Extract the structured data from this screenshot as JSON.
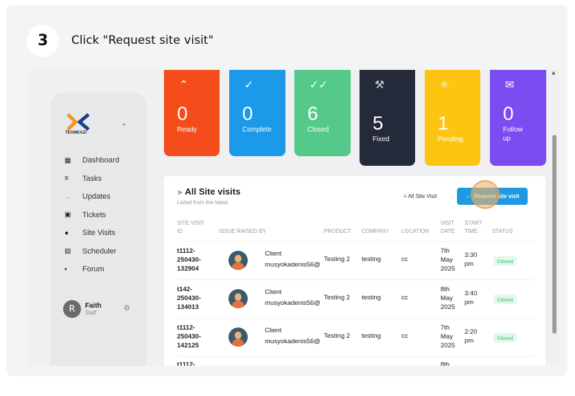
{
  "step": {
    "number": "3",
    "text": "Click \"Request site visit\""
  },
  "logo": {
    "text": "TEAMKAZI"
  },
  "sidebar": {
    "items": [
      {
        "label": "Dashboard",
        "icon": "dashboard-icon"
      },
      {
        "label": "Tasks",
        "icon": "tasks-icon"
      },
      {
        "label": "Updates",
        "icon": "updates-icon"
      },
      {
        "label": "Tickets",
        "icon": "tickets-icon"
      },
      {
        "label": "Site Visits",
        "icon": "location-icon"
      },
      {
        "label": "Scheduler",
        "icon": "calendar-icon"
      },
      {
        "label": "Forum",
        "icon": "forum-icon"
      }
    ]
  },
  "user": {
    "name": "Faith",
    "role": "Staff",
    "initial": "R"
  },
  "cards": [
    {
      "value": "0",
      "label": "Ready",
      "color": "#f44c1a",
      "icon": "chevrons-up-icon"
    },
    {
      "value": "0",
      "label": "Complete",
      "color": "#1d99ea",
      "icon": "check-icon"
    },
    {
      "value": "6",
      "label": "Closed",
      "color": "#55c98a",
      "icon": "double-check-icon"
    },
    {
      "value": "5",
      "label": "Fixed",
      "color": "#252a3a",
      "icon": "wrench-icon"
    },
    {
      "value": "1",
      "label": "Pending",
      "color": "#fdc512",
      "icon": "spinner-icon"
    },
    {
      "value": "0",
      "label": "Follow up",
      "color": "#7b4cf0",
      "icon": "chat-icon"
    }
  ],
  "panel": {
    "title": "All Site visits",
    "subtitle": "Listed from the latest",
    "all_visit_label": "All Site Visit",
    "request_button": "Request site visit"
  },
  "table": {
    "headers": [
      "SITE VISIT ID",
      "ISSUE RAISED BY",
      "PRODUCT",
      "COMPANY",
      "LOCATION",
      "VISIT DATE",
      "START TIME",
      "STATUS"
    ],
    "rows": [
      {
        "id": "t1112-250430-132904",
        "role": "Client",
        "email": "musyokadenis56@",
        "product": "Testing 2",
        "company": "testing",
        "location": "cc",
        "date": "7th May 2025",
        "time": "3:30 pm",
        "status": "Closed"
      },
      {
        "id": "t142-250430-134013",
        "role": "Client",
        "email": "musyokadenis56@",
        "product": "Testing 2",
        "company": "testing",
        "location": "cc",
        "date": "8th May 2025",
        "time": "3:40 pm",
        "status": "Closed"
      },
      {
        "id": "t1112-250430-142125",
        "role": "Client",
        "email": "musyokadenis56@",
        "product": "Testing 2",
        "company": "testing",
        "location": "cc",
        "date": "7th May 2025",
        "time": "2:20 pm",
        "status": "Closed"
      }
    ],
    "partial_row": {
      "id": "t1112-",
      "date": "8th"
    }
  }
}
